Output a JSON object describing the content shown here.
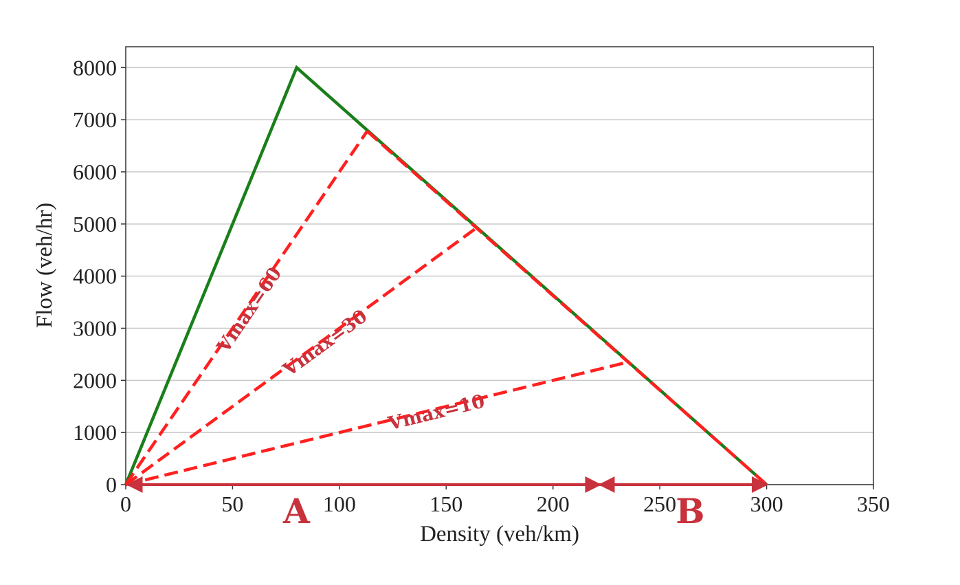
{
  "chart_data": {
    "type": "line",
    "xlabel": "Density (veh/km)",
    "ylabel": "Flow (veh/hr)",
    "xlim": [
      0,
      350
    ],
    "ylim": [
      0,
      8400
    ],
    "x_ticks": [
      0,
      50,
      100,
      150,
      200,
      250,
      300,
      350
    ],
    "y_ticks": [
      0,
      1000,
      2000,
      3000,
      4000,
      5000,
      6000,
      7000,
      8000
    ],
    "grid": "horizontal",
    "fundamental_diagram": {
      "color": "#1a7f1a",
      "points": [
        [
          0,
          0
        ],
        [
          80,
          8000
        ],
        [
          300,
          0
        ]
      ]
    },
    "series": [
      {
        "name": "Vmax=60",
        "points": [
          [
            0,
            0
          ],
          [
            113,
            6780
          ]
        ]
      },
      {
        "name": "Vmax=30",
        "points": [
          [
            0,
            0
          ],
          [
            165,
            4950
          ]
        ]
      },
      {
        "name": "Vmax=10",
        "points": [
          [
            0,
            0
          ],
          [
            234,
            2340
          ]
        ]
      }
    ],
    "overlay_color": "#ff2020",
    "regions": [
      {
        "name": "A",
        "from": 0,
        "to": 222
      },
      {
        "name": "B",
        "from": 222,
        "to": 300
      }
    ],
    "arrow_color": "#c8323c",
    "label_color": "#c8323c"
  }
}
